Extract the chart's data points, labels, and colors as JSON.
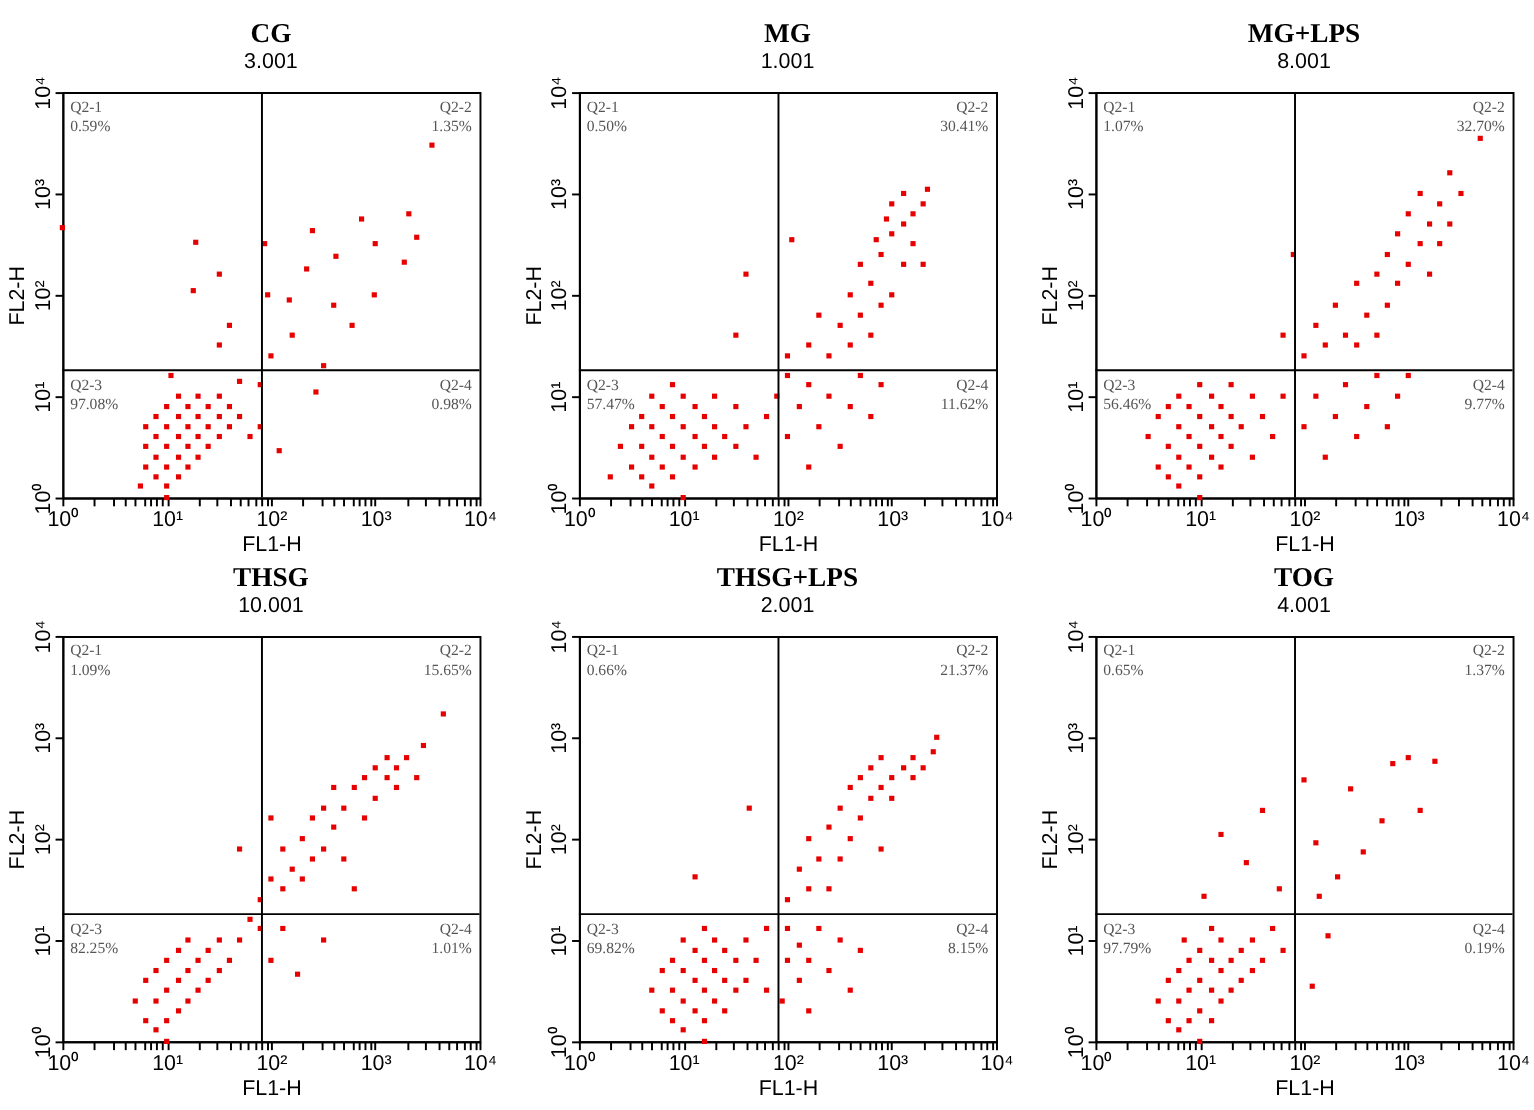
{
  "chart_data": [
    {
      "type": "scatter",
      "title": "CG",
      "subtitle": "3.001",
      "xlabel": "FL1-H",
      "ylabel": "FL2-H",
      "log": "xy",
      "xlim": [
        1,
        10000
      ],
      "ylim": [
        1,
        10000
      ],
      "marker": "square",
      "xticks": [
        {
          "value": 1,
          "label": "10⁰"
        },
        {
          "value": 2,
          "label": null
        },
        {
          "value": 3,
          "label": null
        },
        {
          "value": 4,
          "label": null
        },
        {
          "value": 5,
          "label": null
        },
        {
          "value": 6,
          "label": null
        },
        {
          "value": 7,
          "label": null
        },
        {
          "value": 8,
          "label": null
        },
        {
          "value": 9,
          "label": null
        },
        {
          "value": 10,
          "label": "10¹"
        },
        {
          "value": 20,
          "label": null
        },
        {
          "value": 30,
          "label": null
        },
        {
          "value": 40,
          "label": null
        },
        {
          "value": 50,
          "label": null
        },
        {
          "value": 60,
          "label": null
        },
        {
          "value": 70,
          "label": null
        },
        {
          "value": 80,
          "label": null
        },
        {
          "value": 90,
          "label": null
        },
        {
          "value": 100,
          "label": "10²"
        },
        {
          "value": 200,
          "label": null
        },
        {
          "value": 300,
          "label": null
        },
        {
          "value": 400,
          "label": null
        },
        {
          "value": 500,
          "label": null
        },
        {
          "value": 600,
          "label": null
        },
        {
          "value": 700,
          "label": null
        },
        {
          "value": 800,
          "label": null
        },
        {
          "value": 900,
          "label": null
        },
        {
          "value": 1000,
          "label": "10³"
        },
        {
          "value": 2000,
          "label": null
        },
        {
          "value": 3000,
          "label": null
        },
        {
          "value": 4000,
          "label": null
        },
        {
          "value": 5000,
          "label": null
        },
        {
          "value": 6000,
          "label": null
        },
        {
          "value": 7000,
          "label": null
        },
        {
          "value": 8000,
          "label": null
        },
        {
          "value": 9000,
          "label": null
        },
        {
          "value": 10000,
          "label": "10⁴"
        }
      ],
      "yticks": [
        {
          "value": 1,
          "label": "10⁰"
        },
        {
          "value": 10,
          "label": "10¹"
        },
        {
          "value": 100,
          "label": "10²"
        },
        {
          "value": 1000,
          "label": "10³"
        },
        {
          "value": 10000,
          "label": "10⁴"
        }
      ],
      "ref_lines": [
        {
          "axis": "x",
          "value": 82,
          "color": "#000000"
        },
        {
          "axis": "y",
          "value": 18,
          "color": "#000000"
        }
      ],
      "annotations": [
        "Q2-1\n0.59%",
        "Q2-2\n1.35%",
        "Q2-3\n97.08%",
        "Q2-4\n0.98%"
      ],
      "series": [
        {
          "color": "#e60000",
          "x": [
            6.3,
            6.3,
            6.3,
            7.9,
            7.9,
            7.9,
            7.9,
            10,
            10,
            10,
            10,
            10,
            13,
            13,
            13,
            13,
            13,
            16,
            16,
            16,
            16,
            20,
            20,
            20,
            20,
            25,
            25,
            25,
            32,
            32,
            32,
            40,
            40,
            50,
            63,
            79,
            10,
            5.6,
            11,
            50,
            79,
            120,
            270,
            100,
            32,
            40,
            19,
            32,
            18,
            87,
            93,
            150,
            220,
            250,
            420,
            600,
            980,
            1900,
            2500,
            2100,
            740,
            320,
            400,
            160,
            1000,
            3500,
            1
          ],
          "values": [
            2,
            3.2,
            5,
            1.6,
            2.5,
            4,
            6.3,
            1.3,
            2,
            3.2,
            5,
            7.9,
            1.6,
            2.5,
            4,
            6.3,
            10,
            2,
            3.2,
            5,
            7.9,
            2.5,
            4,
            6.3,
            10,
            3.2,
            5,
            7.9,
            4,
            6.3,
            10,
            5,
            7.9,
            6.3,
            4,
            5,
            1,
            1.3,
            16,
            14,
            13,
            2.9,
            11,
            25,
            32,
            50,
            330,
            160,
            110,
            320,
            100,
            89,
            180,
            430,
            240,
            50,
            100,
            210,
            370,
            630,
            560,
            20,
            79,
            40,
            320,
            3000,
            460
          ]
        }
      ]
    },
    {
      "type": "scatter",
      "title": "MG",
      "subtitle": "1.001",
      "xlabel": "FL1-H",
      "ylabel": "FL2-H",
      "log": "xy",
      "xlim": [
        1,
        10000
      ],
      "ylim": [
        1,
        10000
      ],
      "marker": "square",
      "xticks": [
        {
          "value": 1,
          "label": "10⁰"
        },
        {
          "value": 2,
          "label": null
        },
        {
          "value": 3,
          "label": null
        },
        {
          "value": 4,
          "label": null
        },
        {
          "value": 5,
          "label": null
        },
        {
          "value": 6,
          "label": null
        },
        {
          "value": 7,
          "label": null
        },
        {
          "value": 8,
          "label": null
        },
        {
          "value": 9,
          "label": null
        },
        {
          "value": 10,
          "label": "10¹"
        },
        {
          "value": 20,
          "label": null
        },
        {
          "value": 30,
          "label": null
        },
        {
          "value": 40,
          "label": null
        },
        {
          "value": 50,
          "label": null
        },
        {
          "value": 60,
          "label": null
        },
        {
          "value": 70,
          "label": null
        },
        {
          "value": 80,
          "label": null
        },
        {
          "value": 90,
          "label": null
        },
        {
          "value": 100,
          "label": "10²"
        },
        {
          "value": 200,
          "label": null
        },
        {
          "value": 300,
          "label": null
        },
        {
          "value": 400,
          "label": null
        },
        {
          "value": 500,
          "label": null
        },
        {
          "value": 600,
          "label": null
        },
        {
          "value": 700,
          "label": null
        },
        {
          "value": 800,
          "label": null
        },
        {
          "value": 900,
          "label": null
        },
        {
          "value": 1000,
          "label": "10³"
        },
        {
          "value": 2000,
          "label": null
        },
        {
          "value": 3000,
          "label": null
        },
        {
          "value": 4000,
          "label": null
        },
        {
          "value": 5000,
          "label": null
        },
        {
          "value": 6000,
          "label": null
        },
        {
          "value": 7000,
          "label": null
        },
        {
          "value": 8000,
          "label": null
        },
        {
          "value": 9000,
          "label": null
        },
        {
          "value": 10000,
          "label": "10⁴"
        }
      ],
      "yticks": [
        {
          "value": 1,
          "label": "10⁰"
        },
        {
          "value": 10,
          "label": "10¹"
        },
        {
          "value": 100,
          "label": "10²"
        },
        {
          "value": 1000,
          "label": "10³"
        },
        {
          "value": 10000,
          "label": "10⁴"
        }
      ],
      "ref_lines": [
        {
          "axis": "x",
          "value": 82,
          "color": "#000000"
        },
        {
          "axis": "y",
          "value": 18,
          "color": "#000000"
        }
      ],
      "annotations": [
        "Q2-1\n0.50%",
        "Q2-2\n30.41%",
        "Q2-3\n57.47%",
        "Q2-4\n11.62%"
      ],
      "series": [
        {
          "color": "#e60000",
          "x": [
            2.5,
            3.2,
            3.2,
            4,
            4,
            4,
            5,
            5,
            5,
            5,
            6.3,
            6.3,
            6.3,
            7.9,
            7.9,
            7.9,
            7.9,
            10,
            10,
            10,
            13,
            13,
            13,
            16,
            16,
            20,
            20,
            20,
            25,
            32,
            32,
            40,
            50,
            63,
            2,
            10,
            79,
            100,
            100,
            130,
            160,
            160,
            200,
            250,
            320,
            400,
            500,
            630,
            790,
            100,
            160,
            200,
            250,
            320,
            400,
            400,
            500,
            500,
            630,
            630,
            790,
            790,
            1000,
            1000,
            1000,
            1300,
            1300,
            1300,
            1600,
            1600,
            2000,
            2200,
            890,
            710,
            40,
            110,
            32,
            2000
          ],
          "values": [
            3.2,
            2,
            5,
            1.6,
            3.2,
            6.3,
            1.3,
            2.5,
            5,
            10,
            2,
            4,
            7.9,
            1.6,
            3.2,
            6.3,
            13,
            2.5,
            5,
            10,
            2,
            4,
            7.9,
            3.2,
            6.3,
            2.5,
            5,
            10,
            4,
            3.2,
            7.9,
            5,
            2.5,
            6.3,
            1.6,
            1,
            10,
            4,
            16,
            7.9,
            2,
            13,
            5,
            10,
            3.2,
            7.9,
            16,
            6.3,
            13,
            25,
            32,
            63,
            25,
            50,
            100,
            32,
            63,
            200,
            130,
            40,
            250,
            79,
            100,
            400,
            790,
            200,
            500,
            1000,
            320,
            630,
            790,
            1100,
            560,
            350,
            160,
            350,
            40,
            200
          ]
        }
      ]
    },
    {
      "type": "scatter",
      "title": "MG+LPS",
      "subtitle": "8.001",
      "xlabel": "FL1-H",
      "ylabel": "FL2-H",
      "log": "xy",
      "xlim": [
        1,
        10000
      ],
      "ylim": [
        1,
        10000
      ],
      "marker": "square",
      "xticks": [
        {
          "value": 1,
          "label": "10⁰"
        },
        {
          "value": 2,
          "label": null
        },
        {
          "value": 3,
          "label": null
        },
        {
          "value": 4,
          "label": null
        },
        {
          "value": 5,
          "label": null
        },
        {
          "value": 6,
          "label": null
        },
        {
          "value": 7,
          "label": null
        },
        {
          "value": 8,
          "label": null
        },
        {
          "value": 9,
          "label": null
        },
        {
          "value": 10,
          "label": "10¹"
        },
        {
          "value": 20,
          "label": null
        },
        {
          "value": 30,
          "label": null
        },
        {
          "value": 40,
          "label": null
        },
        {
          "value": 50,
          "label": null
        },
        {
          "value": 60,
          "label": null
        },
        {
          "value": 70,
          "label": null
        },
        {
          "value": 80,
          "label": null
        },
        {
          "value": 90,
          "label": null
        },
        {
          "value": 100,
          "label": "10²"
        },
        {
          "value": 200,
          "label": null
        },
        {
          "value": 300,
          "label": null
        },
        {
          "value": 400,
          "label": null
        },
        {
          "value": 500,
          "label": null
        },
        {
          "value": 600,
          "label": null
        },
        {
          "value": 700,
          "label": null
        },
        {
          "value": 800,
          "label": null
        },
        {
          "value": 900,
          "label": null
        },
        {
          "value": 1000,
          "label": "10³"
        },
        {
          "value": 2000,
          "label": null
        },
        {
          "value": 3000,
          "label": null
        },
        {
          "value": 4000,
          "label": null
        },
        {
          "value": 5000,
          "label": null
        },
        {
          "value": 6000,
          "label": null
        },
        {
          "value": 7000,
          "label": null
        },
        {
          "value": 8000,
          "label": null
        },
        {
          "value": 9000,
          "label": null
        },
        {
          "value": 10000,
          "label": "10⁴"
        }
      ],
      "yticks": [
        {
          "value": 1,
          "label": "10⁰"
        },
        {
          "value": 10,
          "label": "10¹"
        },
        {
          "value": 100,
          "label": "10²"
        },
        {
          "value": 1000,
          "label": "10³"
        },
        {
          "value": 10000,
          "label": "10⁴"
        }
      ],
      "ref_lines": [
        {
          "axis": "x",
          "value": 82,
          "color": "#000000"
        },
        {
          "axis": "y",
          "value": 18,
          "color": "#000000"
        }
      ],
      "annotations": [
        "Q2-1\n1.07%",
        "Q2-2\n32.70%",
        "Q2-3\n56.46%",
        "Q2-4\n9.77%"
      ],
      "series": [
        {
          "color": "#e60000",
          "x": [
            3.2,
            4,
            4,
            5,
            5,
            5,
            6.3,
            6.3,
            6.3,
            6.3,
            7.9,
            7.9,
            7.9,
            10,
            10,
            10,
            10,
            13,
            13,
            13,
            16,
            16,
            16,
            20,
            20,
            20,
            25,
            32,
            32,
            40,
            50,
            63,
            10,
            100,
            130,
            160,
            200,
            250,
            320,
            400,
            500,
            630,
            790,
            1000,
            100,
            130,
            160,
            200,
            250,
            320,
            320,
            400,
            500,
            500,
            630,
            630,
            790,
            790,
            1000,
            1000,
            1300,
            1300,
            1600,
            1600,
            2000,
            2000,
            2500,
            2500,
            3200,
            4900,
            79,
            63
          ],
          "values": [
            4,
            2,
            6.3,
            1.6,
            3.2,
            7.9,
            1.3,
            2.5,
            5,
            10,
            2,
            4,
            7.9,
            1.6,
            3.2,
            6.3,
            13,
            2.5,
            5,
            10,
            2,
            4,
            7.9,
            3.2,
            6.3,
            13,
            5,
            2.5,
            10,
            6.3,
            4,
            10,
            1,
            5,
            10,
            2.5,
            6.3,
            13,
            4,
            7.9,
            16,
            5,
            10,
            16,
            25,
            50,
            32,
            79,
            40,
            130,
            32,
            63,
            160,
            40,
            250,
            79,
            130,
            400,
            200,
            630,
            320,
            1000,
            500,
            160,
            790,
            320,
            1600,
            500,
            1000,
            3500,
            250,
            40
          ]
        }
      ]
    },
    {
      "type": "scatter",
      "title": "THSG",
      "subtitle": "10.001",
      "xlabel": "FL1-H",
      "ylabel": "FL2-H",
      "log": "xy",
      "xlim": [
        1,
        10000
      ],
      "ylim": [
        1,
        10000
      ],
      "marker": "square",
      "xticks": [
        {
          "value": 1,
          "label": "10⁰"
        },
        {
          "value": 2,
          "label": null
        },
        {
          "value": 3,
          "label": null
        },
        {
          "value": 4,
          "label": null
        },
        {
          "value": 5,
          "label": null
        },
        {
          "value": 6,
          "label": null
        },
        {
          "value": 7,
          "label": null
        },
        {
          "value": 8,
          "label": null
        },
        {
          "value": 9,
          "label": null
        },
        {
          "value": 10,
          "label": "10¹"
        },
        {
          "value": 20,
          "label": null
        },
        {
          "value": 30,
          "label": null
        },
        {
          "value": 40,
          "label": null
        },
        {
          "value": 50,
          "label": null
        },
        {
          "value": 60,
          "label": null
        },
        {
          "value": 70,
          "label": null
        },
        {
          "value": 80,
          "label": null
        },
        {
          "value": 90,
          "label": null
        },
        {
          "value": 100,
          "label": "10²"
        },
        {
          "value": 200,
          "label": null
        },
        {
          "value": 300,
          "label": null
        },
        {
          "value": 400,
          "label": null
        },
        {
          "value": 500,
          "label": null
        },
        {
          "value": 600,
          "label": null
        },
        {
          "value": 700,
          "label": null
        },
        {
          "value": 800,
          "label": null
        },
        {
          "value": 900,
          "label": null
        },
        {
          "value": 1000,
          "label": "10³"
        },
        {
          "value": 2000,
          "label": null
        },
        {
          "value": 3000,
          "label": null
        },
        {
          "value": 4000,
          "label": null
        },
        {
          "value": 5000,
          "label": null
        },
        {
          "value": 6000,
          "label": null
        },
        {
          "value": 7000,
          "label": null
        },
        {
          "value": 8000,
          "label": null
        },
        {
          "value": 9000,
          "label": null
        },
        {
          "value": 10000,
          "label": "10⁴"
        }
      ],
      "yticks": [
        {
          "value": 1,
          "label": "10⁰"
        },
        {
          "value": 10,
          "label": "10¹"
        },
        {
          "value": 100,
          "label": "10²"
        },
        {
          "value": 1000,
          "label": "10³"
        },
        {
          "value": 10000,
          "label": "10⁴"
        }
      ],
      "ref_lines": [
        {
          "axis": "x",
          "value": 82,
          "color": "#000000"
        },
        {
          "axis": "y",
          "value": 18,
          "color": "#000000"
        }
      ],
      "annotations": [
        "Q2-1\n1.09%",
        "Q2-2\n15.65%",
        "Q2-3\n82.25%",
        "Q2-4\n1.01%"
      ],
      "series": [
        {
          "color": "#e60000",
          "x": [
            5,
            6.3,
            6.3,
            7.9,
            7.9,
            7.9,
            10,
            10,
            10,
            13,
            13,
            13,
            16,
            16,
            16,
            20,
            20,
            25,
            25,
            32,
            32,
            40,
            50,
            63,
            10,
            79,
            79,
            100,
            130,
            130,
            160,
            200,
            200,
            250,
            250,
            320,
            320,
            400,
            400,
            500,
            500,
            630,
            790,
            790,
            1000,
            1000,
            1300,
            1300,
            1600,
            1600,
            2000,
            2500,
            2900,
            4500,
            50,
            100,
            630,
            180,
            320,
            130,
            100
          ],
          "values": [
            2.5,
            1.6,
            4,
            1.3,
            2.5,
            5,
            1.6,
            3.2,
            6.3,
            2,
            4,
            7.9,
            2.5,
            5,
            10,
            3.2,
            6.3,
            4,
            7.9,
            5,
            10,
            6.3,
            10,
            16,
            1,
            13,
            25,
            40,
            32,
            79,
            50,
            100,
            40,
            160,
            63,
            200,
            79,
            130,
            320,
            200,
            63,
            320,
            160,
            400,
            250,
            500,
            400,
            630,
            320,
            500,
            630,
            400,
            830,
            1700,
            79,
            160,
            32,
            4.6,
            10,
            13,
            6.3
          ]
        }
      ]
    },
    {
      "type": "scatter",
      "title": "THSG+LPS",
      "subtitle": "2.001",
      "xlabel": "FL1-H",
      "ylabel": "FL2-H",
      "log": "xy",
      "xlim": [
        1,
        10000
      ],
      "ylim": [
        1,
        10000
      ],
      "marker": "square",
      "xticks": [
        {
          "value": 1,
          "label": "10⁰"
        },
        {
          "value": 2,
          "label": null
        },
        {
          "value": 3,
          "label": null
        },
        {
          "value": 4,
          "label": null
        },
        {
          "value": 5,
          "label": null
        },
        {
          "value": 6,
          "label": null
        },
        {
          "value": 7,
          "label": null
        },
        {
          "value": 8,
          "label": null
        },
        {
          "value": 9,
          "label": null
        },
        {
          "value": 10,
          "label": "10¹"
        },
        {
          "value": 20,
          "label": null
        },
        {
          "value": 30,
          "label": null
        },
        {
          "value": 40,
          "label": null
        },
        {
          "value": 50,
          "label": null
        },
        {
          "value": 60,
          "label": null
        },
        {
          "value": 70,
          "label": null
        },
        {
          "value": 80,
          "label": null
        },
        {
          "value": 90,
          "label": null
        },
        {
          "value": 100,
          "label": "10²"
        },
        {
          "value": 200,
          "label": null
        },
        {
          "value": 300,
          "label": null
        },
        {
          "value": 400,
          "label": null
        },
        {
          "value": 500,
          "label": null
        },
        {
          "value": 600,
          "label": null
        },
        {
          "value": 700,
          "label": null
        },
        {
          "value": 800,
          "label": null
        },
        {
          "value": 900,
          "label": null
        },
        {
          "value": 1000,
          "label": "10³"
        },
        {
          "value": 2000,
          "label": null
        },
        {
          "value": 3000,
          "label": null
        },
        {
          "value": 4000,
          "label": null
        },
        {
          "value": 5000,
          "label": null
        },
        {
          "value": 6000,
          "label": null
        },
        {
          "value": 7000,
          "label": null
        },
        {
          "value": 8000,
          "label": null
        },
        {
          "value": 9000,
          "label": null
        },
        {
          "value": 10000,
          "label": "10⁴"
        }
      ],
      "yticks": [
        {
          "value": 1,
          "label": "10⁰"
        },
        {
          "value": 10,
          "label": "10¹"
        },
        {
          "value": 100,
          "label": "10²"
        },
        {
          "value": 1000,
          "label": "10³"
        },
        {
          "value": 10000,
          "label": "10⁴"
        }
      ],
      "ref_lines": [
        {
          "axis": "x",
          "value": 82,
          "color": "#000000"
        },
        {
          "axis": "y",
          "value": 18,
          "color": "#000000"
        }
      ],
      "annotations": [
        "Q2-1\n0.66%",
        "Q2-2\n21.37%",
        "Q2-3\n69.82%",
        "Q2-4\n8.15%"
      ],
      "series": [
        {
          "color": "#e60000",
          "x": [
            5,
            6.3,
            6.3,
            7.9,
            7.9,
            7.9,
            10,
            10,
            10,
            10,
            13,
            13,
            13,
            16,
            16,
            16,
            16,
            20,
            20,
            20,
            25,
            25,
            25,
            32,
            32,
            40,
            40,
            50,
            63,
            63,
            16,
            89,
            100,
            100,
            130,
            130,
            160,
            160,
            200,
            250,
            320,
            400,
            500,
            100,
            130,
            160,
            160,
            200,
            250,
            250,
            320,
            320,
            400,
            400,
            500,
            500,
            630,
            630,
            790,
            790,
            1000,
            1000,
            1300,
            1600,
            1600,
            2000,
            2500,
            2700,
            43,
            13,
            790
          ],
          "values": [
            3.2,
            2,
            5,
            1.6,
            3.2,
            6.3,
            1.3,
            2.5,
            5,
            10,
            2,
            4,
            7.9,
            1.6,
            3.2,
            6.3,
            13,
            2.5,
            5,
            10,
            2,
            4,
            7.9,
            3.2,
            6.3,
            4,
            10,
            6.3,
            3.2,
            13,
            1,
            2.5,
            6.3,
            13,
            4,
            8.9,
            2,
            6.3,
            13,
            5,
            10,
            3.2,
            7.9,
            25,
            50,
            32,
            100,
            63,
            130,
            32,
            200,
            63,
            100,
            320,
            160,
            400,
            250,
            500,
            320,
            630,
            400,
            250,
            500,
            400,
            630,
            500,
            720,
            1000,
            200,
            42,
            79
          ]
        }
      ]
    },
    {
      "type": "scatter",
      "title": "TOG",
      "subtitle": "4.001",
      "xlabel": "FL1-H",
      "ylabel": "FL2-H",
      "log": "xy",
      "xlim": [
        1,
        10000
      ],
      "ylim": [
        1,
        10000
      ],
      "marker": "square",
      "xticks": [
        {
          "value": 1,
          "label": "10⁰"
        },
        {
          "value": 2,
          "label": null
        },
        {
          "value": 3,
          "label": null
        },
        {
          "value": 4,
          "label": null
        },
        {
          "value": 5,
          "label": null
        },
        {
          "value": 6,
          "label": null
        },
        {
          "value": 7,
          "label": null
        },
        {
          "value": 8,
          "label": null
        },
        {
          "value": 9,
          "label": null
        },
        {
          "value": 10,
          "label": "10¹"
        },
        {
          "value": 20,
          "label": null
        },
        {
          "value": 30,
          "label": null
        },
        {
          "value": 40,
          "label": null
        },
        {
          "value": 50,
          "label": null
        },
        {
          "value": 60,
          "label": null
        },
        {
          "value": 70,
          "label": null
        },
        {
          "value": 80,
          "label": null
        },
        {
          "value": 90,
          "label": null
        },
        {
          "value": 100,
          "label": "10²"
        },
        {
          "value": 200,
          "label": null
        },
        {
          "value": 300,
          "label": null
        },
        {
          "value": 400,
          "label": null
        },
        {
          "value": 500,
          "label": null
        },
        {
          "value": 600,
          "label": null
        },
        {
          "value": 700,
          "label": null
        },
        {
          "value": 800,
          "label": null
        },
        {
          "value": 900,
          "label": null
        },
        {
          "value": 1000,
          "label": "10³"
        },
        {
          "value": 2000,
          "label": null
        },
        {
          "value": 3000,
          "label": null
        },
        {
          "value": 4000,
          "label": null
        },
        {
          "value": 5000,
          "label": null
        },
        {
          "value": 6000,
          "label": null
        },
        {
          "value": 7000,
          "label": null
        },
        {
          "value": 8000,
          "label": null
        },
        {
          "value": 9000,
          "label": null
        },
        {
          "value": 10000,
          "label": "10⁴"
        }
      ],
      "yticks": [
        {
          "value": 1,
          "label": "10⁰"
        },
        {
          "value": 10,
          "label": "10¹"
        },
        {
          "value": 100,
          "label": "10²"
        },
        {
          "value": 1000,
          "label": "10³"
        },
        {
          "value": 10000,
          "label": "10⁴"
        }
      ],
      "ref_lines": [
        {
          "axis": "x",
          "value": 82,
          "color": "#000000"
        },
        {
          "axis": "y",
          "value": 18,
          "color": "#000000"
        }
      ],
      "annotations": [
        "Q2-1\n0.65%",
        "Q2-2\n1.37%",
        "Q2-3\n97.79%",
        "Q2-4\n0.19%"
      ],
      "series": [
        {
          "color": "#e60000",
          "x": [
            4,
            5,
            5,
            6.3,
            6.3,
            6.3,
            7.9,
            7.9,
            7.9,
            10,
            10,
            10,
            10,
            13,
            13,
            13,
            13,
            16,
            16,
            16,
            20,
            20,
            25,
            25,
            32,
            32,
            40,
            50,
            63,
            7.1,
            1000,
            710,
            1800,
            370,
            210,
            130,
            100,
            280,
            1300,
            560,
            140,
            40,
            16,
            11,
            58,
            28,
            170,
            120
          ],
          "values": [
            2.5,
            1.6,
            4,
            1.3,
            2.5,
            5,
            1.6,
            3.2,
            6.3,
            1,
            2,
            4,
            7.9,
            1.6,
            3.2,
            6.3,
            13,
            2.5,
            5,
            10,
            3.2,
            6.3,
            4,
            7.9,
            5,
            10,
            6.3,
            13,
            7.9,
            10,
            630,
            550,
            580,
            74,
            42,
            91,
            380,
            310,
            190,
            150,
            27,
            190,
            110,
            27,
            32,
            58,
            11,
            3.5
          ]
        }
      ]
    }
  ]
}
